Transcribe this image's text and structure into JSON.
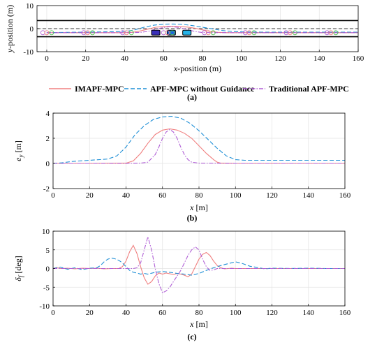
{
  "legend": [
    {
      "label": "IMAPF-MPC",
      "color": "#f08080",
      "dash": "solid"
    },
    {
      "label": "APF-MPC without Guidance",
      "color": "#1f8fd6",
      "dash": "dashed"
    },
    {
      "label": "Traditional APF-MPC",
      "color": "#b05fd6",
      "dash": "dashdot"
    }
  ],
  "chart_data": [
    {
      "id": "a",
      "type": "line",
      "caption": "(a)",
      "xlabel_italic": "x",
      "xlabel_rest": "-position (m)",
      "ylabel_italic": "y",
      "ylabel_rest": "-position (m)",
      "xlim": [
        -5,
        160
      ],
      "ylim": [
        -10,
        10
      ],
      "xticks": [
        0,
        20,
        40,
        60,
        80,
        100,
        120,
        140,
        160
      ],
      "yticks": [
        -10,
        0,
        10
      ],
      "road_edges": [
        3.5,
        -3.5
      ],
      "lane_divider": 0,
      "obstacles_x": [
        56,
        64,
        72
      ],
      "obstacles_y": -1.75,
      "series": [
        {
          "legend_index": 0,
          "x": [
            0,
            20,
            40,
            44,
            48,
            52,
            56,
            60,
            64,
            68,
            72,
            76,
            80,
            84,
            88,
            92,
            100,
            120,
            140,
            160
          ],
          "y": [
            -1.75,
            -1.75,
            -1.75,
            -1.6,
            -1.0,
            -0.2,
            0.6,
            0.95,
            1.0,
            0.95,
            0.7,
            0.2,
            -0.5,
            -1.2,
            -1.6,
            -1.75,
            -1.75,
            -1.75,
            -1.75,
            -1.75
          ]
        },
        {
          "legend_index": 1,
          "x": [
            0,
            10,
            20,
            30,
            40,
            45,
            50,
            55,
            60,
            65,
            70,
            75,
            80,
            85,
            90,
            95,
            100,
            110,
            120,
            140,
            160
          ],
          "y": [
            -1.75,
            -1.6,
            -1.5,
            -1.4,
            -1.2,
            -0.6,
            0.6,
            1.5,
            1.95,
            2.0,
            1.85,
            1.3,
            0.6,
            -0.1,
            -0.8,
            -1.2,
            -1.4,
            -1.5,
            -1.5,
            -1.5,
            -1.5
          ]
        },
        {
          "legend_index": 2,
          "x": [
            0,
            40,
            48,
            52,
            56,
            60,
            64,
            68,
            72,
            76,
            80,
            100,
            160
          ],
          "y": [
            -1.75,
            -1.75,
            -1.65,
            -1.2,
            -0.2,
            0.5,
            0.9,
            0.5,
            -0.3,
            -1.2,
            -1.7,
            -1.75,
            -1.75
          ]
        }
      ],
      "markers_x": [
        0,
        21,
        41,
        62,
        83,
        104,
        125,
        146
      ]
    },
    {
      "id": "b",
      "type": "line",
      "caption": "(b)",
      "xlabel_italic": "x",
      "xlabel_rest": " [m]",
      "ylabel_italic": "e",
      "ylabel_sub": "y",
      "ylabel_rest": " [m]",
      "xlim": [
        0,
        160
      ],
      "ylim": [
        -2,
        4
      ],
      "xticks": [
        0,
        20,
        40,
        60,
        80,
        100,
        120,
        140,
        160
      ],
      "yticks": [
        -2,
        0,
        2,
        4
      ],
      "series": [
        {
          "legend_index": 0,
          "x": [
            0,
            20,
            40,
            44,
            48,
            52,
            56,
            60,
            64,
            68,
            72,
            76,
            80,
            84,
            88,
            90,
            92,
            100,
            120,
            140,
            160
          ],
          "y": [
            0,
            0,
            0.02,
            0.2,
            0.8,
            1.6,
            2.3,
            2.65,
            2.75,
            2.65,
            2.4,
            2.0,
            1.4,
            0.8,
            0.3,
            0.1,
            0.02,
            0,
            0,
            0,
            0
          ]
        },
        {
          "legend_index": 1,
          "x": [
            0,
            5,
            10,
            20,
            30,
            35,
            40,
            45,
            50,
            55,
            60,
            65,
            70,
            75,
            80,
            85,
            90,
            95,
            100,
            105,
            110,
            120,
            140,
            160
          ],
          "y": [
            0,
            0.05,
            0.15,
            0.25,
            0.35,
            0.6,
            1.3,
            2.3,
            3.0,
            3.5,
            3.7,
            3.75,
            3.6,
            3.2,
            2.6,
            1.9,
            1.2,
            0.6,
            0.3,
            0.25,
            0.25,
            0.25,
            0.25,
            0.25
          ]
        },
        {
          "legend_index": 2,
          "x": [
            0,
            40,
            48,
            52,
            56,
            58,
            60,
            62,
            64,
            66,
            68,
            70,
            72,
            74,
            76,
            80,
            100,
            160
          ],
          "y": [
            0,
            0,
            0.02,
            0.1,
            0.7,
            1.3,
            2.0,
            2.5,
            2.7,
            2.5,
            2.0,
            1.3,
            0.7,
            0.3,
            0.1,
            0.02,
            0,
            0
          ]
        }
      ]
    },
    {
      "id": "c",
      "type": "line",
      "caption": "(c)",
      "xlabel_italic": "x",
      "xlabel_rest": " [m]",
      "ylabel_italic": "δ",
      "ylabel_sub": "f",
      "ylabel_rest": " [deg]",
      "xlim": [
        0,
        160
      ],
      "ylim": [
        -10,
        10
      ],
      "xticks": [
        0,
        20,
        40,
        60,
        80,
        100,
        120,
        140,
        160
      ],
      "yticks": [
        -10,
        -5,
        0,
        5,
        10
      ],
      "series": [
        {
          "legend_index": 0,
          "x": [
            0,
            2,
            4,
            8,
            12,
            16,
            20,
            24,
            28,
            32,
            36,
            38,
            40,
            42,
            44,
            46,
            48,
            50,
            52,
            54,
            56,
            58,
            60,
            62,
            64,
            66,
            68,
            70,
            72,
            74,
            76,
            78,
            80,
            82,
            84,
            86,
            88,
            90,
            92,
            94,
            96,
            98,
            100,
            110,
            120,
            140,
            160
          ],
          "y": [
            0,
            0.3,
            0,
            0.1,
            -0.1,
            0.1,
            0,
            0.1,
            -0.1,
            0,
            0,
            0.5,
            2,
            4.5,
            6.2,
            4,
            0.5,
            -2.5,
            -4.2,
            -3.5,
            -2,
            -1.2,
            -1.5,
            -1.2,
            -1.4,
            -1.6,
            -1.3,
            -1.5,
            -1.8,
            -2.2,
            -1.5,
            0.5,
            2.5,
            3.8,
            4.3,
            3.5,
            2,
            0.8,
            0.2,
            -0.1,
            0,
            0.1,
            0,
            0,
            0,
            0,
            0
          ]
        },
        {
          "legend_index": 1,
          "x": [
            0,
            4,
            8,
            12,
            16,
            20,
            24,
            26,
            28,
            30,
            32,
            34,
            36,
            38,
            40,
            42,
            44,
            46,
            48,
            50,
            52,
            56,
            60,
            64,
            68,
            72,
            76,
            80,
            84,
            88,
            92,
            96,
            100,
            104,
            108,
            112,
            116,
            120,
            130,
            140,
            150,
            160
          ],
          "y": [
            0,
            0.4,
            -0.2,
            0.2,
            -0.3,
            0.1,
            0.2,
            0.8,
            1.8,
            2.5,
            2.8,
            2.6,
            2.2,
            1.5,
            0.5,
            -0.5,
            -1,
            -1.2,
            -1.5,
            -1.3,
            -1.5,
            -1,
            -0.8,
            -1,
            -1.3,
            -1.5,
            -1.8,
            -1.3,
            -0.5,
            0.2,
            0.8,
            1.3,
            1.8,
            1.3,
            0.6,
            0.3,
            -0.1,
            0.1,
            0,
            0.1,
            0,
            0
          ]
        },
        {
          "legend_index": 2,
          "x": [
            0,
            20,
            40,
            44,
            46,
            48,
            50,
            52,
            54,
            56,
            58,
            60,
            62,
            64,
            66,
            68,
            70,
            72,
            74,
            76,
            78,
            80,
            82,
            84,
            86,
            88,
            90,
            100,
            120,
            160
          ],
          "y": [
            0,
            0,
            0,
            0,
            0.2,
            1.5,
            5,
            8.5,
            5,
            0,
            -4,
            -6.5,
            -6,
            -5,
            -3.5,
            -2,
            -0.5,
            1.5,
            3.5,
            5,
            5.8,
            5,
            2.5,
            0.5,
            -0.5,
            -0.4,
            0,
            0,
            0,
            0
          ]
        }
      ]
    }
  ]
}
